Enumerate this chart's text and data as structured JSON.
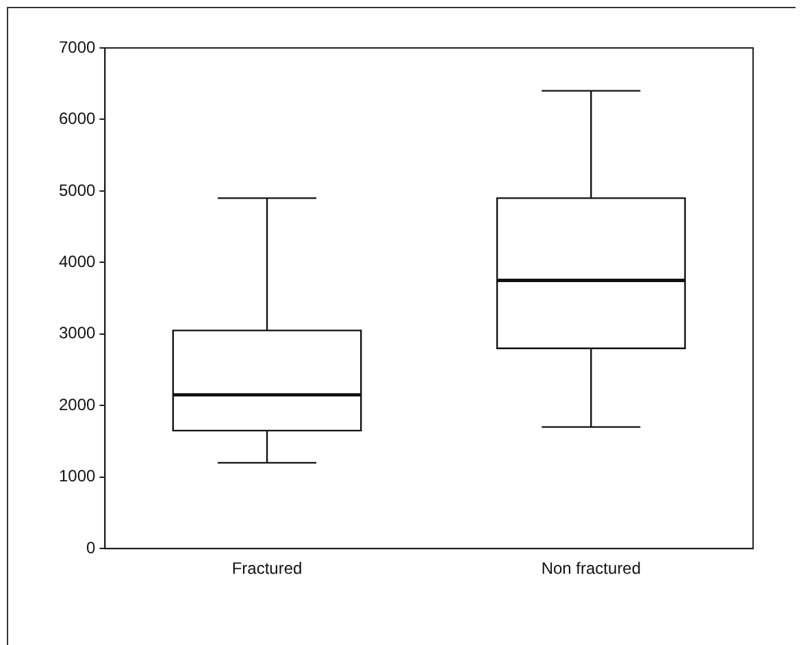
{
  "chart_data": {
    "type": "box",
    "categories": [
      "Fractured",
      "Non fractured"
    ],
    "boxes": [
      {
        "low": 1200,
        "q1": 1650,
        "median": 2150,
        "q3": 3050,
        "high": 4900
      },
      {
        "low": 1700,
        "q1": 2800,
        "median": 3750,
        "q3": 4900,
        "high": 6400
      }
    ],
    "ylim": [
      0,
      7000
    ],
    "yticks": [
      0,
      1000,
      2000,
      3000,
      4000,
      5000,
      6000,
      7000
    ],
    "grid": false,
    "legend": false
  }
}
